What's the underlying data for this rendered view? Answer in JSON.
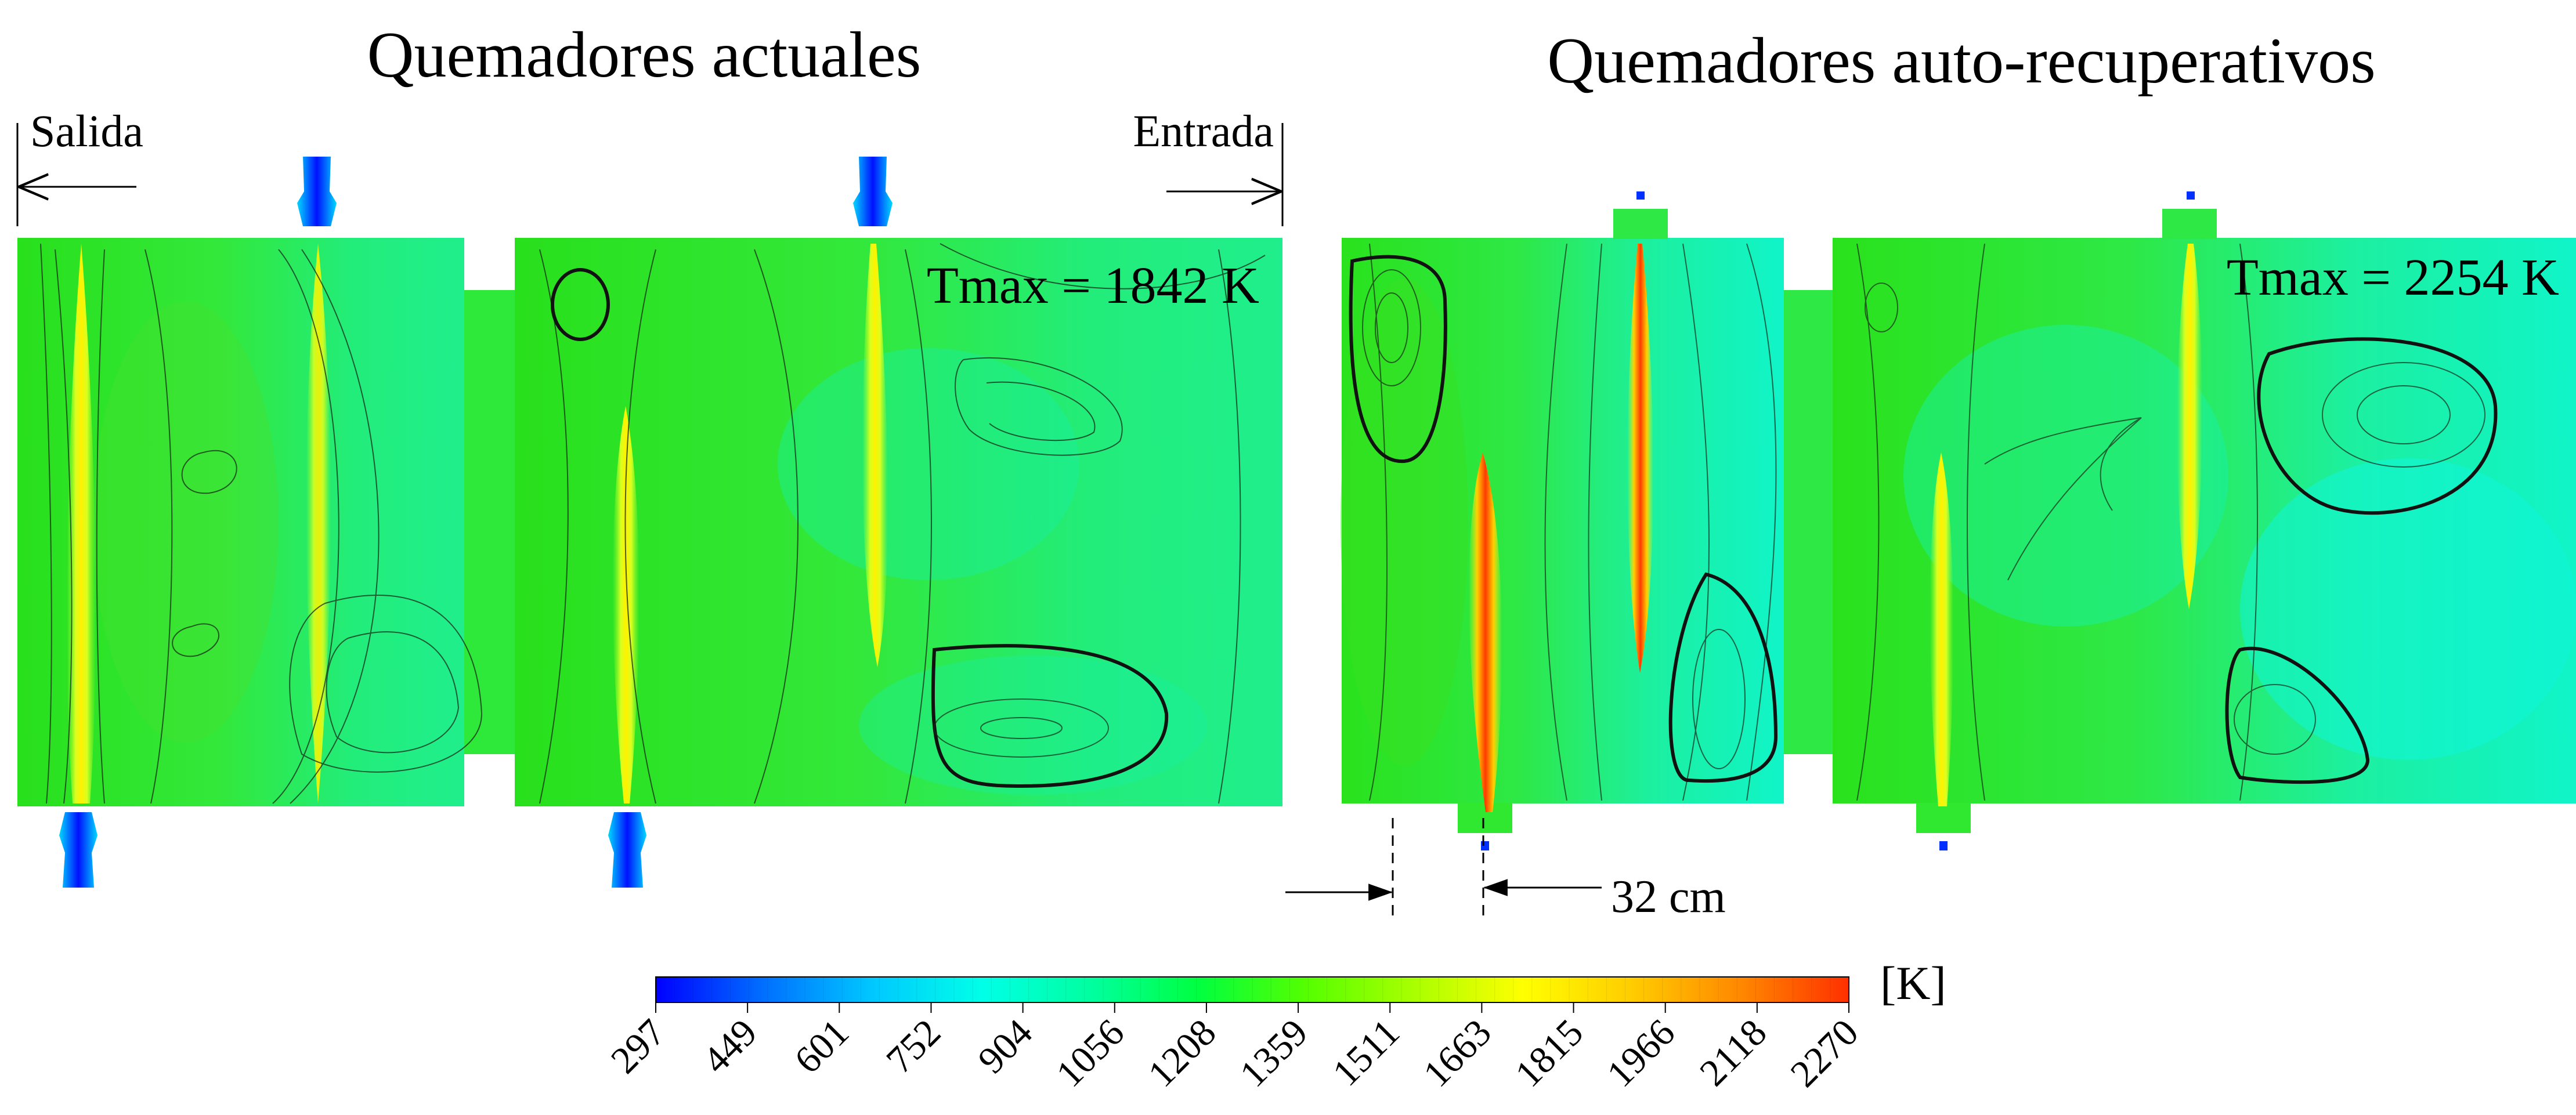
{
  "left_panel": {
    "title": "Quemadores actuales",
    "outlet_label": "Salida",
    "inlet_label": "Entrada",
    "tmax_label": "Tmax = 1842 K"
  },
  "right_panel": {
    "title": "Quemadores auto-recuperativos",
    "tmax_label": "Tmax = 2254 K",
    "offset_label": "32 cm"
  },
  "colorbar": {
    "unit_label": "[K]",
    "ticks": [
      "297",
      "449",
      "601",
      "752",
      "904",
      "1056",
      "1208",
      "1359",
      "1511",
      "1663",
      "1815",
      "1966",
      "2118",
      "2270"
    ],
    "min": 297,
    "max": 2270,
    "colors": [
      "#0000ff",
      "#0070ff",
      "#00c8ff",
      "#00ffe8",
      "#00ffa0",
      "#00ff40",
      "#55ff00",
      "#aaff00",
      "#ffff00",
      "#ffcc00",
      "#ff8800",
      "#ff3000"
    ]
  }
}
